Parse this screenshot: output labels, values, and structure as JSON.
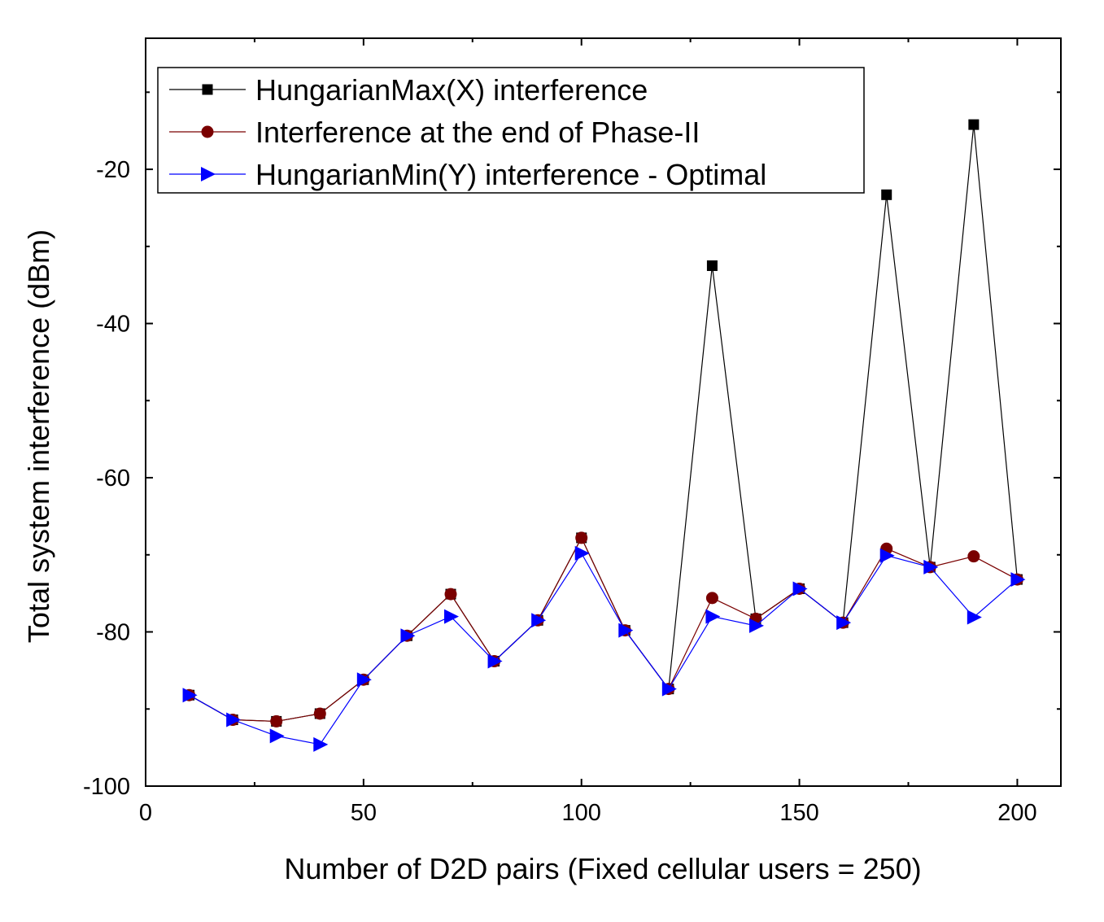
{
  "chart_data": {
    "type": "line",
    "xlabel": "Number of D2D pairs (Fixed cellular users = 250)",
    "ylabel": "Total system interference (dBm)",
    "xlim": [
      0,
      210
    ],
    "ylim": [
      -100,
      -3
    ],
    "xticks": [
      0,
      50,
      100,
      150,
      200
    ],
    "yticks": [
      -100,
      -80,
      -60,
      -40,
      -20
    ],
    "legend_position": "top-left",
    "grid": false,
    "x": [
      10,
      20,
      30,
      40,
      50,
      60,
      70,
      80,
      90,
      100,
      110,
      120,
      130,
      140,
      150,
      160,
      170,
      180,
      190,
      200
    ],
    "series": [
      {
        "name": "HungarianMax(X) interference",
        "color": "#000000",
        "marker": "square",
        "values": [
          -88.2,
          -91.4,
          -91.6,
          -90.6,
          -86.2,
          -80.5,
          -75.1,
          -83.8,
          -78.5,
          -67.8,
          -79.8,
          -87.4,
          -32.5,
          -78.3,
          -74.4,
          -78.8,
          -23.3,
          -71.6,
          -14.2,
          -73.2
        ]
      },
      {
        "name": "Interference at the end of Phase-II",
        "color": "#7a0000",
        "marker": "circle",
        "values": [
          -88.2,
          -91.4,
          -91.6,
          -90.6,
          -86.2,
          -80.5,
          -75.1,
          -83.8,
          -78.5,
          -67.8,
          -79.8,
          -87.4,
          -75.6,
          -78.3,
          -74.4,
          -78.8,
          -69.2,
          -71.6,
          -70.2,
          -73.2
        ]
      },
      {
        "name": "HungarianMin(Y) interference - Optimal",
        "color": "#0000ff",
        "marker": "triangle-right",
        "values": [
          -88.2,
          -91.4,
          -93.5,
          -94.6,
          -86.2,
          -80.5,
          -78.0,
          -83.8,
          -78.5,
          -69.8,
          -79.8,
          -87.4,
          -78.0,
          -79.2,
          -74.4,
          -78.8,
          -70.1,
          -71.6,
          -78.1,
          -73.2
        ]
      }
    ]
  }
}
